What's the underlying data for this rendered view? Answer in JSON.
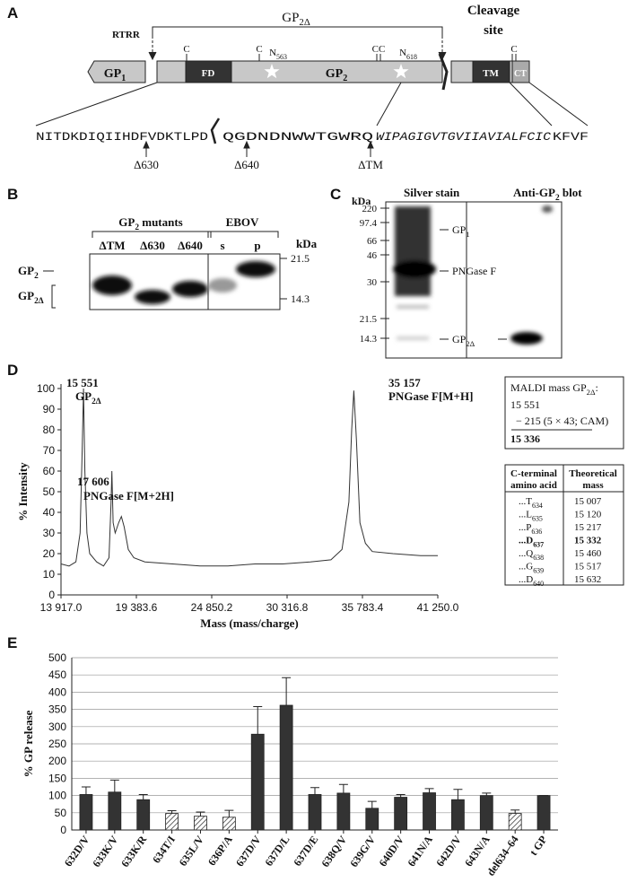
{
  "panel_labels": [
    "A",
    "B",
    "C",
    "D",
    "E"
  ],
  "panel_a": {
    "gp2d": {
      "text": "GP",
      "sub": "2Δ"
    },
    "rtrr": "RTRR",
    "cleavage": [
      "Cleavage",
      "site"
    ],
    "cys": [
      "C",
      "C",
      "CC",
      "C"
    ],
    "glycans": [
      {
        "text": "N",
        "sub": "563"
      },
      {
        "text": "N",
        "sub": "618"
      }
    ],
    "domains": {
      "gp1": {
        "text": "GP",
        "sub": "1"
      },
      "fd": "FD",
      "gp2": {
        "text": "GP",
        "sub": "2"
      },
      "tm": "TM",
      "ct": "CT"
    },
    "sequence": [
      "NITDKDIQIIHDFVDKTLPD",
      "QGDNDNWWTGWRQ",
      "WIPAGIGVTGVIIAVIALFCIC",
      "KFVF"
    ],
    "truncations": [
      "Δ630",
      "Δ640",
      "ΔTM"
    ]
  },
  "panel_b": {
    "group": {
      "text": "GP",
      "sub": "2",
      "after": " mutants"
    },
    "lanes": [
      "ΔTM",
      "Δ630",
      "Δ640"
    ],
    "ebov": "EBOV",
    "ebov_lanes": [
      "s",
      "p"
    ],
    "kda": "kDa",
    "markers": [
      "21.5",
      "14.3"
    ],
    "bands": [
      {
        "text": "GP",
        "sub": "2"
      },
      {
        "text": "GP",
        "sub": "2Δ"
      }
    ]
  },
  "panel_c": {
    "kda": "kDa",
    "silver": "Silver stain",
    "blot": {
      "text": "Anti-GP",
      "sub": "2",
      "after": " blot"
    },
    "markers": [
      "220",
      "97.4",
      "66",
      "46",
      "30",
      "21.5",
      "14.3"
    ],
    "bands": [
      {
        "text": "GP",
        "sub": "1"
      },
      "PNGase F",
      {
        "text": "GP",
        "sub": "2Δ"
      }
    ]
  },
  "panel_d": {
    "maldi": {
      "line1": {
        "text": "MALDI mass GP",
        "sub": "2Δ",
        "after": ":"
      },
      "mass": "15 551",
      "cam": "− 215 (5 × 43; CAM)",
      "result": "15 336"
    },
    "table": {
      "header": [
        [
          "C-terminal",
          "amino acid"
        ],
        [
          "Theoretical",
          "mass"
        ]
      ],
      "bold_row": 3,
      "rows": [
        [
          {
            "text": "...T",
            "sub": "634"
          },
          "15 007"
        ],
        [
          {
            "text": "...L",
            "sub": "635"
          },
          "15 120"
        ],
        [
          {
            "text": "...P",
            "sub": "636"
          },
          "15 217"
        ],
        [
          {
            "text": "...D",
            "sub": "637"
          },
          "15 332"
        ],
        [
          {
            "text": "...Q",
            "sub": "638"
          },
          "15 460"
        ],
        [
          {
            "text": "...G",
            "sub": "639"
          },
          "15 517"
        ],
        [
          {
            "text": "...D",
            "sub": "640"
          },
          "15 632"
        ]
      ]
    }
  },
  "chart_data": [
    {
      "type": "line",
      "color": "#333333",
      "xlabel": "Mass (mass/charge)",
      "ylabel": "% Intensity",
      "x": [
        13917,
        14500,
        15000,
        15300,
        15450,
        15551,
        15650,
        15800,
        16000,
        16500,
        17000,
        17400,
        17550,
        17606,
        17700,
        17850,
        18100,
        18300,
        18500,
        18800,
        19200,
        20000,
        22000,
        24000,
        26000,
        28000,
        30000,
        32000,
        33500,
        34300,
        34800,
        35000,
        35157,
        35350,
        35600,
        36000,
        36500,
        38000,
        40000,
        41250
      ],
      "values": [
        15,
        14,
        16,
        30,
        70,
        100,
        60,
        30,
        20,
        16,
        14,
        18,
        45,
        60,
        35,
        30,
        35,
        38,
        33,
        22,
        18,
        16,
        15,
        14,
        14,
        15,
        15,
        16,
        17,
        22,
        45,
        80,
        99,
        75,
        35,
        25,
        21,
        20,
        19,
        19
      ],
      "xlim": [
        13917,
        41250
      ],
      "xticks": [
        {
          "value": 13917,
          "label": "13 917.0"
        },
        {
          "value": 19383.6,
          "label": "19 383.6"
        },
        {
          "value": 24850.2,
          "label": "24 850.2"
        },
        {
          "value": 30316.8,
          "label": "30 316.8"
        },
        {
          "value": 35783.4,
          "label": "35 783.4"
        },
        {
          "value": 41250,
          "label": "41 250.0"
        }
      ],
      "ylim": [
        0,
        100
      ],
      "yticks": [
        0,
        10,
        20,
        30,
        40,
        50,
        60,
        70,
        80,
        90,
        100
      ],
      "annotations": [
        {
          "mass": "15 551",
          "label": {
            "text": "GP",
            "sub": "2Δ"
          }
        },
        {
          "mass": "17 606",
          "label": "PNGase F[M+2H]"
        },
        {
          "mass": "35 157",
          "label": "PNGase F[M+H]"
        }
      ]
    },
    {
      "type": "bar",
      "color": "#333333",
      "ylabel": "% GP release",
      "grid": true,
      "categories": [
        "632D/V",
        "633K/V",
        "633K/R",
        "634T/I",
        "635L/V",
        "636P/A",
        "637D/V",
        "637D/L",
        "637D/E",
        "638Q/V",
        "639G/V",
        "640D/V",
        "641N/A",
        "642D/V",
        "643N/A",
        "del634–64",
        "t GP"
      ],
      "values": [
        103,
        110,
        88,
        48,
        40,
        37,
        278,
        362,
        103,
        107,
        63,
        95,
        108,
        88,
        100,
        48,
        100
      ],
      "errors": [
        22,
        35,
        15,
        8,
        12,
        20,
        80,
        80,
        20,
        25,
        20,
        8,
        12,
        30,
        7,
        10,
        0
      ],
      "hatched": [
        false,
        false,
        false,
        true,
        true,
        true,
        false,
        false,
        false,
        false,
        false,
        false,
        false,
        false,
        false,
        true,
        false
      ],
      "ylim": [
        0,
        500
      ],
      "yticks": [
        0,
        50,
        100,
        150,
        200,
        250,
        300,
        350,
        400,
        450,
        500
      ]
    }
  ]
}
